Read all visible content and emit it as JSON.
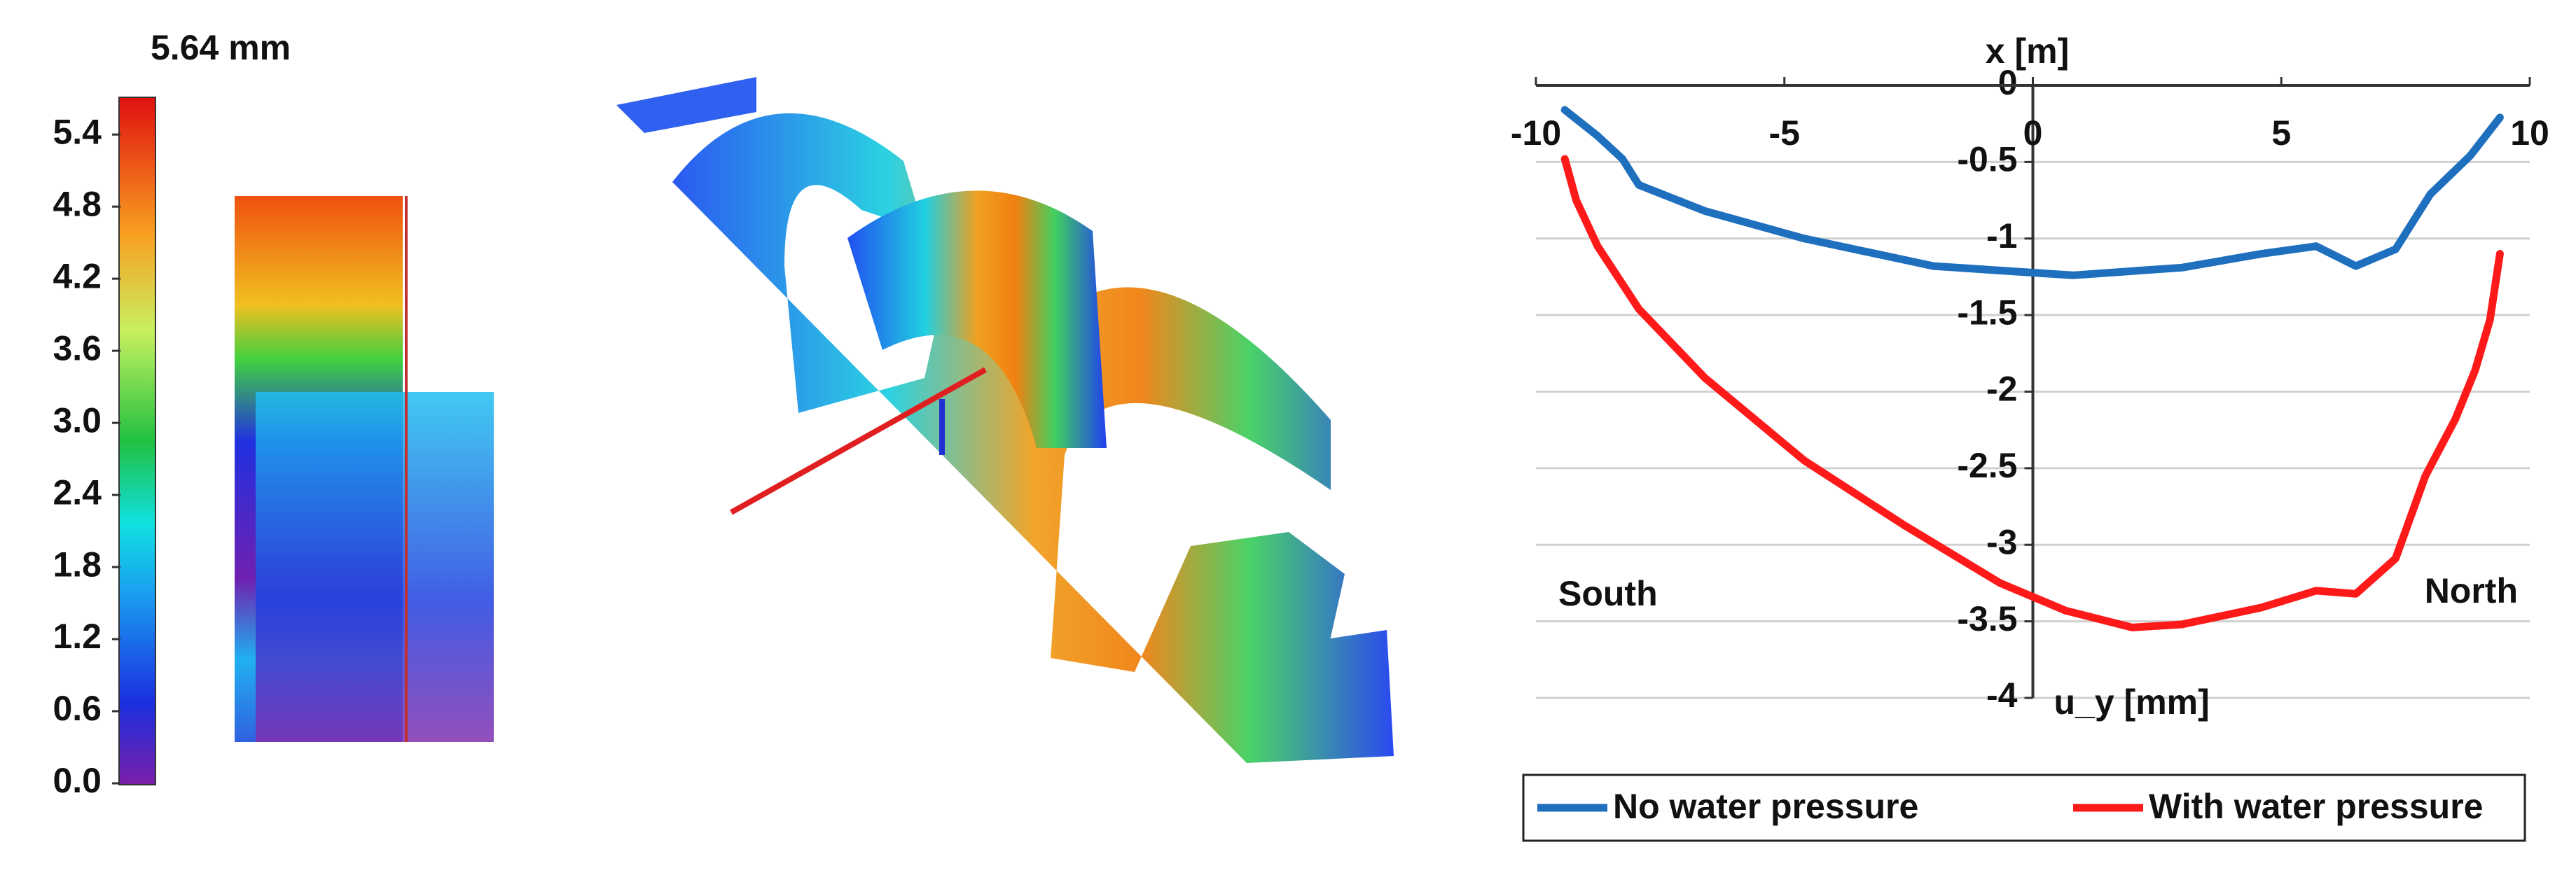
{
  "colorbar": {
    "title": "5.64 mm",
    "lim": [
      0,
      5.64
    ],
    "ticks": [
      {
        "value": 0,
        "label": "0.0"
      },
      0.6,
      1.2,
      1.8,
      2.4,
      {
        "value": 3,
        "label": "3.0"
      },
      3.6,
      4.2,
      4.8,
      5.4
    ]
  },
  "chart_data": {
    "type": "line",
    "xlabel": "x [m]",
    "ylabel": "u_y [mm]",
    "annotations": [
      "South",
      "North"
    ],
    "xlim": [
      -10,
      10
    ],
    "xticks": [
      -10,
      -5,
      0,
      5,
      10
    ],
    "ylim": [
      -4,
      0
    ],
    "yticks": [
      0,
      -0.5,
      -1,
      -1.5,
      -2,
      -2.5,
      -3,
      -3.5,
      -4
    ],
    "grid": true,
    "legend": "bottom",
    "series": [
      {
        "name": "No water pressure",
        "color": "#1f6fbf",
        "x": [
          -9.42,
          -8.76,
          -8.26,
          -7.93,
          -6.6,
          -4.6,
          -2.0,
          0.8,
          3.0,
          4.6,
          5.7,
          6.5,
          7.3,
          8.0,
          8.8,
          9.4
        ],
        "values": [
          -0.16,
          -0.33,
          -0.48,
          -0.65,
          -0.82,
          -1.0,
          -1.18,
          -1.24,
          -1.19,
          -1.1,
          -1.05,
          -1.18,
          -1.07,
          -0.71,
          -0.46,
          -0.21
        ]
      },
      {
        "name": "With water pressure",
        "color": "#ff1a1a",
        "x": [
          -9.42,
          -9.19,
          -8.76,
          -7.93,
          -6.6,
          -4.6,
          -2.6,
          -0.66,
          0.66,
          2.0,
          3.0,
          4.6,
          5.7,
          6.5,
          7.3,
          7.9,
          8.5,
          8.9,
          9.2,
          9.4
        ],
        "values": [
          -0.48,
          -0.75,
          -1.05,
          -1.46,
          -1.91,
          -2.45,
          -2.87,
          -3.25,
          -3.43,
          -3.54,
          -3.52,
          -3.41,
          -3.3,
          -3.32,
          -3.09,
          -2.55,
          -2.18,
          -1.86,
          -1.53,
          -1.1
        ]
      }
    ]
  }
}
